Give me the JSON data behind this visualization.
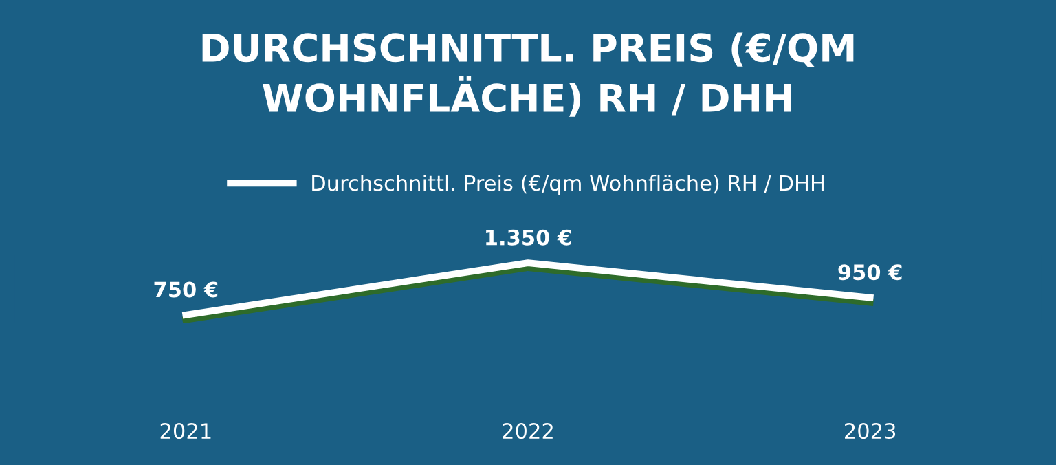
{
  "chart_data": {
    "type": "line",
    "title": "DURCHSCHNITTL. PREIS (€/QM\nWOHNFLÄCHE) RH / DHH",
    "categories": [
      "2021",
      "2022",
      "2023"
    ],
    "series": [
      {
        "name": "Durchschnittl. Preis (€/qm Wohnfläche) RH / DHH",
        "color": "#ffffff",
        "values": [
          750,
          1350,
          950
        ],
        "value_labels": [
          "750 €",
          "1.350 €",
          "950 €"
        ]
      }
    ],
    "legend": "top",
    "grid": false,
    "marker": "none",
    "line_style": "solid"
  }
}
